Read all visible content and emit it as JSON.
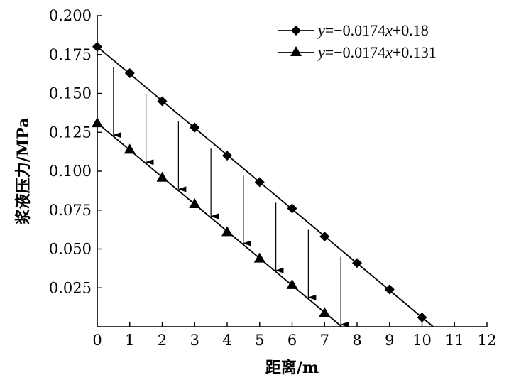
{
  "chart_data": {
    "type": "line",
    "xlabel": "距离/m",
    "ylabel": "浆液压力/MPa",
    "xlim": [
      0,
      12
    ],
    "ylim": [
      0,
      0.2
    ],
    "x_ticks": [
      "0",
      "1",
      "2",
      "3",
      "4",
      "5",
      "6",
      "7",
      "8",
      "9",
      "10",
      "11",
      "12"
    ],
    "y_ticks": [
      "0.025",
      "0.050",
      "0.075",
      "0.100",
      "0.125",
      "0.150",
      "0.175",
      "0.200"
    ],
    "legend_position": "top-right",
    "series": [
      {
        "name": "y=−0.0174x+0.18",
        "marker": "diamond",
        "fit": {
          "slope": -0.0174,
          "intercept": 0.18
        },
        "x": [
          0,
          1,
          2,
          3,
          4,
          5,
          6,
          7,
          8,
          9,
          10
        ],
        "y": [
          0.18,
          0.163,
          0.145,
          0.128,
          0.11,
          0.093,
          0.076,
          0.058,
          0.041,
          0.024,
          0.006
        ]
      },
      {
        "name": "y=−0.0174x+0.131",
        "marker": "triangle",
        "fit": {
          "slope": -0.0174,
          "intercept": 0.131
        },
        "x": [
          0,
          1,
          2,
          3,
          4,
          5,
          6,
          7
        ],
        "y": [
          0.131,
          0.114,
          0.096,
          0.079,
          0.061,
          0.044,
          0.027,
          0.009
        ]
      }
    ],
    "annotations": {
      "type": "arrows-down",
      "x": [
        0.5,
        1.5,
        2.5,
        3.5,
        4.5,
        5.5,
        6.5,
        7.5
      ]
    }
  }
}
